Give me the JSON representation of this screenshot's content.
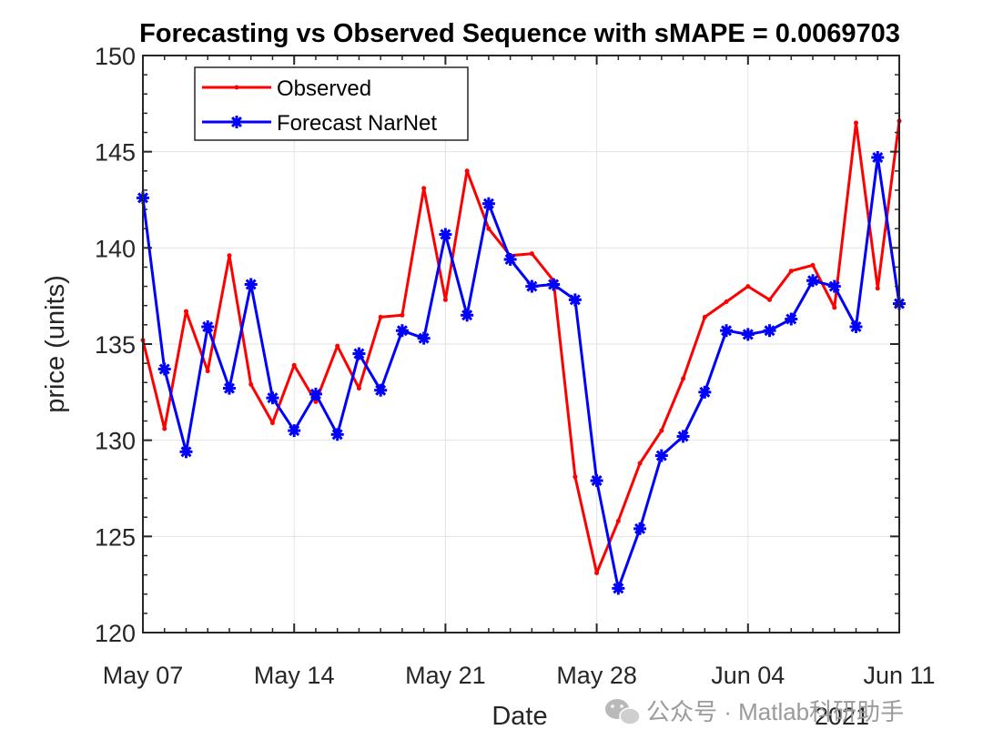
{
  "chart_data": {
    "type": "line",
    "title": "Forecasting vs Observed Sequence with sMAPE = 0.0069703",
    "xlabel": "Date",
    "ylabel": "price (units)",
    "year_label": "2021",
    "ylim": [
      120,
      150
    ],
    "yticks": [
      120,
      125,
      130,
      135,
      140,
      145,
      150
    ],
    "xlim": [
      0,
      35
    ],
    "xticks": [
      {
        "day": 0,
        "label": "May 07"
      },
      {
        "day": 7,
        "label": "May 14"
      },
      {
        "day": 14,
        "label": "May 21"
      },
      {
        "day": 21,
        "label": "May 28"
      },
      {
        "day": 28,
        "label": "Jun 04"
      },
      {
        "day": 35,
        "label": "Jun 11"
      }
    ],
    "grid": true,
    "legend_position": "top-left",
    "series": [
      {
        "name": "Observed",
        "color": "#ff0000",
        "marker": "dot",
        "x": [
          0,
          1,
          2,
          3,
          4,
          5,
          6,
          7,
          8,
          9,
          10,
          11,
          12,
          13,
          14,
          15,
          16,
          17,
          18,
          19,
          20,
          21,
          22,
          23,
          24,
          25,
          26,
          27,
          28,
          29,
          30,
          31,
          32,
          33,
          34,
          35
        ],
        "values": [
          135.2,
          130.6,
          136.7,
          133.6,
          139.6,
          132.9,
          130.9,
          133.9,
          132.0,
          134.9,
          132.7,
          136.4,
          136.5,
          143.1,
          137.3,
          144.0,
          141.0,
          139.6,
          139.7,
          138.3,
          128.1,
          123.1,
          125.8,
          128.8,
          130.5,
          133.2,
          136.4,
          137.2,
          138.0,
          137.3,
          138.8,
          139.1,
          136.9,
          146.5,
          137.9,
          146.6
        ]
      },
      {
        "name": "Forecast NarNet",
        "color": "#0000ff",
        "marker": "asterisk",
        "x": [
          0,
          1,
          2,
          3,
          4,
          5,
          6,
          7,
          8,
          9,
          10,
          11,
          12,
          13,
          14,
          15,
          16,
          17,
          18,
          19,
          20,
          21,
          22,
          23,
          24,
          25,
          26,
          27,
          28,
          29,
          30,
          31,
          32,
          33,
          34,
          35
        ],
        "values": [
          142.6,
          133.7,
          129.4,
          135.9,
          132.7,
          138.1,
          132.2,
          130.5,
          132.4,
          130.3,
          134.5,
          132.6,
          135.7,
          135.3,
          140.7,
          136.5,
          142.3,
          139.4,
          138.0,
          138.1,
          137.3,
          127.9,
          122.3,
          125.4,
          129.2,
          130.2,
          132.5,
          135.7,
          135.5,
          135.7,
          136.3,
          138.3,
          138.0,
          135.9,
          144.7,
          137.1
        ]
      }
    ]
  },
  "watermark": {
    "text": "公众号 · Matlab科研助手",
    "icon": "wechat-icon"
  }
}
